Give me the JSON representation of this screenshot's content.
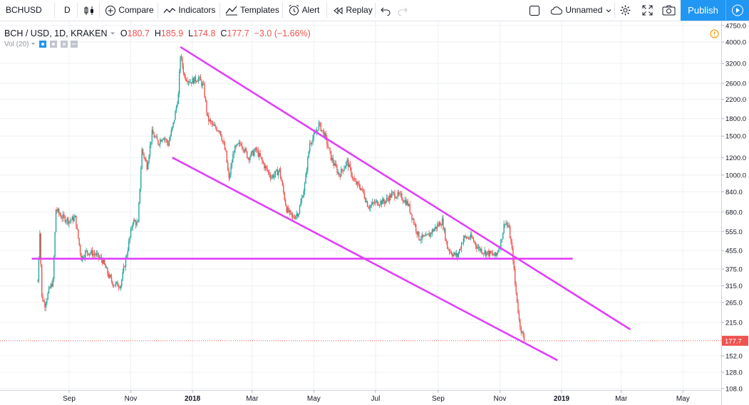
{
  "toolbar": {
    "symbol": "BCHUSD",
    "interval": "D",
    "compare": "Compare",
    "indicators": "Indicators",
    "templates": "Templates",
    "alert": "Alert",
    "replay": "Replay",
    "layout_name": "Unnamed",
    "publish": "Publish"
  },
  "legend": {
    "title": "BCH / USD, 1D, KRAKEN",
    "o_label": "O",
    "o_value": "180.7",
    "h_label": "H",
    "h_value": "185.9",
    "l_label": "L",
    "l_value": "174.8",
    "c_label": "C",
    "c_value": "177.7",
    "change": "−3.0 (−1.66%)",
    "volume": "Vol (20)"
  },
  "colors": {
    "up": "#26a69a",
    "down": "#ef5350",
    "trendline": "#e040fb",
    "price_label": "#ef5350",
    "accent": "#2196f3"
  },
  "chart_data": {
    "type": "candlestick",
    "symbol": "BCH / USD, 1D, KRAKEN",
    "y_scale": "log",
    "y_ticks": [
      "4750.0",
      "4000.0",
      "3200.0",
      "2600.0",
      "2200.0",
      "1800.0",
      "1500.0",
      "1200.0",
      "1000.0",
      "840.0",
      "680.0",
      "555.0",
      "455.0",
      "375.0",
      "315.0",
      "265.0",
      "215.0",
      "177.7",
      "152.0",
      "128.0",
      "108.0"
    ],
    "x_ticks": [
      "Sep",
      "Nov",
      "2018",
      "Mar",
      "May",
      "Jul",
      "Sep",
      "Nov",
      "2019",
      "Mar",
      "May"
    ],
    "last_price": "177.7",
    "ohlc": {
      "open": 180.7,
      "high": 185.9,
      "low": 174.8,
      "close": 177.7,
      "change": -3.0,
      "change_pct": -1.66
    },
    "grid": true,
    "price_path": [
      [
        "2017-08-01",
        330
      ],
      [
        "2017-08-03",
        560
      ],
      [
        "2017-08-05",
        280
      ],
      [
        "2017-08-08",
        260
      ],
      [
        "2017-08-12",
        300
      ],
      [
        "2017-08-16",
        330
      ],
      [
        "2017-08-19",
        700
      ],
      [
        "2017-08-24",
        650
      ],
      [
        "2017-09-01",
        620
      ],
      [
        "2017-09-07",
        640
      ],
      [
        "2017-09-13",
        420
      ],
      [
        "2017-09-18",
        450
      ],
      [
        "2017-09-26",
        440
      ],
      [
        "2017-10-04",
        410
      ],
      [
        "2017-10-10",
        350
      ],
      [
        "2017-10-15",
        320
      ],
      [
        "2017-10-22",
        318
      ],
      [
        "2017-10-28",
        440
      ],
      [
        "2017-11-03",
        620
      ],
      [
        "2017-11-08",
        600
      ],
      [
        "2017-11-12",
        1300
      ],
      [
        "2017-11-17",
        1100
      ],
      [
        "2017-11-22",
        1550
      ],
      [
        "2017-11-28",
        1400
      ],
      [
        "2017-12-03",
        1500
      ],
      [
        "2017-12-08",
        1380
      ],
      [
        "2017-12-13",
        1700
      ],
      [
        "2017-12-18",
        2300
      ],
      [
        "2017-12-20",
        3500
      ],
      [
        "2017-12-24",
        2800
      ],
      [
        "2017-12-30",
        2650
      ],
      [
        "2018-01-07",
        2750
      ],
      [
        "2018-01-12",
        2500
      ],
      [
        "2018-01-16",
        1800
      ],
      [
        "2018-01-22",
        1650
      ],
      [
        "2018-01-28",
        1600
      ],
      [
        "2018-02-03",
        1250
      ],
      [
        "2018-02-06",
        950
      ],
      [
        "2018-02-11",
        1300
      ],
      [
        "2018-02-18",
        1400
      ],
      [
        "2018-02-25",
        1200
      ],
      [
        "2018-03-05",
        1300
      ],
      [
        "2018-03-13",
        1100
      ],
      [
        "2018-03-20",
        980
      ],
      [
        "2018-03-28",
        1050
      ],
      [
        "2018-04-04",
        700
      ],
      [
        "2018-04-10",
        640
      ],
      [
        "2018-04-16",
        680
      ],
      [
        "2018-04-22",
        900
      ],
      [
        "2018-04-27",
        1400
      ],
      [
        "2018-05-03",
        1550
      ],
      [
        "2018-05-06",
        1700
      ],
      [
        "2018-05-12",
        1500
      ],
      [
        "2018-05-18",
        1200
      ],
      [
        "2018-05-26",
        1000
      ],
      [
        "2018-06-03",
        1150
      ],
      [
        "2018-06-10",
        930
      ],
      [
        "2018-06-17",
        870
      ],
      [
        "2018-06-24",
        720
      ],
      [
        "2018-07-01",
        750
      ],
      [
        "2018-07-10",
        760
      ],
      [
        "2018-07-18",
        820
      ],
      [
        "2018-07-26",
        800
      ],
      [
        "2018-08-02",
        740
      ],
      [
        "2018-08-08",
        610
      ],
      [
        "2018-08-13",
        520
      ],
      [
        "2018-08-20",
        520
      ],
      [
        "2018-08-28",
        570
      ],
      [
        "2018-09-05",
        620
      ],
      [
        "2018-09-10",
        470
      ],
      [
        "2018-09-15",
        440
      ],
      [
        "2018-09-20",
        430
      ],
      [
        "2018-09-26",
        520
      ],
      [
        "2018-10-04",
        520
      ],
      [
        "2018-10-10",
        470
      ],
      [
        "2018-10-16",
        450
      ],
      [
        "2018-10-22",
        440
      ],
      [
        "2018-10-28",
        430
      ],
      [
        "2018-11-02",
        500
      ],
      [
        "2018-11-06",
        620
      ],
      [
        "2018-11-10",
        570
      ],
      [
        "2018-11-14",
        420
      ],
      [
        "2018-11-16",
        320
      ],
      [
        "2018-11-18",
        270
      ],
      [
        "2018-11-20",
        220
      ],
      [
        "2018-11-22",
        200
      ],
      [
        "2018-11-25",
        178
      ]
    ],
    "trendlines": [
      {
        "name": "upper",
        "from": [
          "2017-12-20",
          3800
        ],
        "to": [
          "2019-03-10",
          200
        ]
      },
      {
        "name": "lower",
        "from": [
          "2017-12-12",
          1200
        ],
        "to": [
          "2018-12-28",
          145
        ]
      },
      {
        "name": "horizontal",
        "from": [
          "2017-07-26",
          418
        ],
        "to": [
          "2019-01-12",
          418
        ]
      }
    ]
  }
}
